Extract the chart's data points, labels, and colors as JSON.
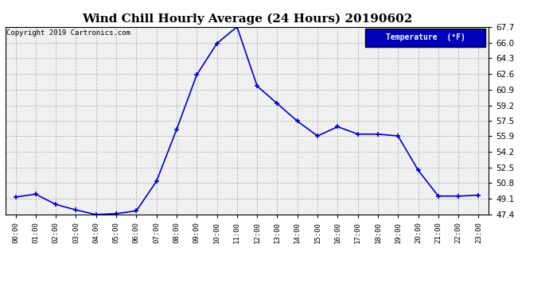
{
  "title": "Wind Chill Hourly Average (24 Hours) 20190602",
  "copyright": "Copyright 2019 Cartronics.com",
  "legend_label": "Temperature  (°F)",
  "hours": [
    "00:00",
    "01:00",
    "02:00",
    "03:00",
    "04:00",
    "05:00",
    "06:00",
    "07:00",
    "08:00",
    "09:00",
    "10:00",
    "11:00",
    "12:00",
    "13:00",
    "14:00",
    "15:00",
    "16:00",
    "17:00",
    "18:00",
    "19:00",
    "20:00",
    "21:00",
    "22:00",
    "23:00"
  ],
  "values": [
    49.3,
    49.6,
    48.5,
    47.9,
    47.4,
    47.5,
    47.8,
    51.0,
    56.6,
    62.5,
    65.9,
    67.7,
    61.3,
    59.4,
    57.5,
    55.9,
    56.9,
    56.1,
    56.1,
    55.9,
    52.2,
    49.4,
    49.4,
    49.5
  ],
  "ylim": [
    47.4,
    67.7
  ],
  "yticks": [
    47.4,
    49.1,
    50.8,
    52.5,
    54.2,
    55.9,
    57.5,
    59.2,
    60.9,
    62.6,
    64.3,
    66.0,
    67.7
  ],
  "line_color": "#0000cc",
  "marker_color": "#0000cc",
  "bg_color": "#ffffff",
  "plot_bg_color": "#f0f0f0",
  "grid_color": "#aaaaaa",
  "title_fontsize": 11,
  "legend_bg": "#0000bb",
  "legend_text_color": "#ffffff"
}
